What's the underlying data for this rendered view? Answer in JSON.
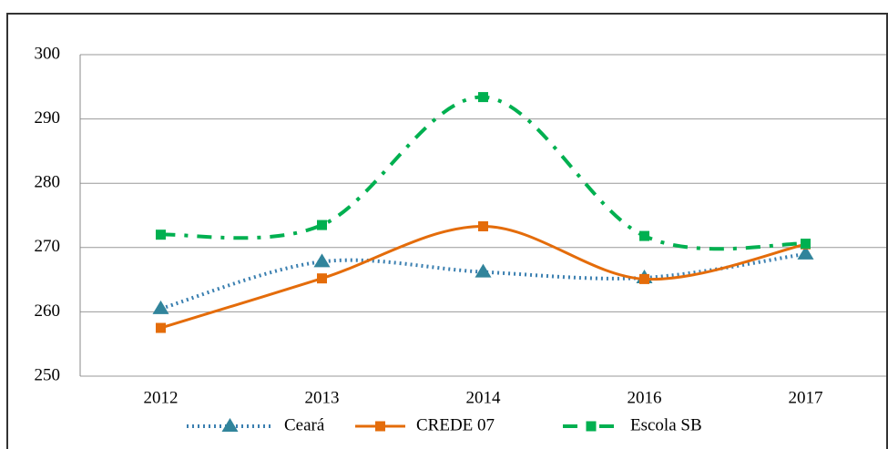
{
  "chart_data": {
    "type": "line",
    "categories": [
      "2012",
      "2013",
      "2014",
      "2016",
      "2017"
    ],
    "series": [
      {
        "name": "Ceará",
        "color": "#3a7fb0",
        "marker_color": "#31849b",
        "marker": "triangle",
        "line_style": "dotted",
        "values": [
          260.5,
          267.8,
          266.2,
          265.3,
          269.0
        ]
      },
      {
        "name": "CREDE 07",
        "color": "#e46c0a",
        "marker_color": "#e46c0a",
        "marker": "square",
        "line_style": "solid",
        "values": [
          257.5,
          265.2,
          273.3,
          265.1,
          270.5
        ]
      },
      {
        "name": "Escola SB",
        "color": "#00b050",
        "marker_color": "#00b050",
        "marker": "square",
        "line_style": "dashdot",
        "values": [
          272.0,
          273.5,
          293.4,
          271.8,
          270.6
        ]
      }
    ],
    "smooth": true,
    "ylim": [
      250,
      300
    ],
    "yticks": [
      250,
      260,
      270,
      280,
      290,
      300
    ],
    "grid": true,
    "legend": "bottom"
  }
}
